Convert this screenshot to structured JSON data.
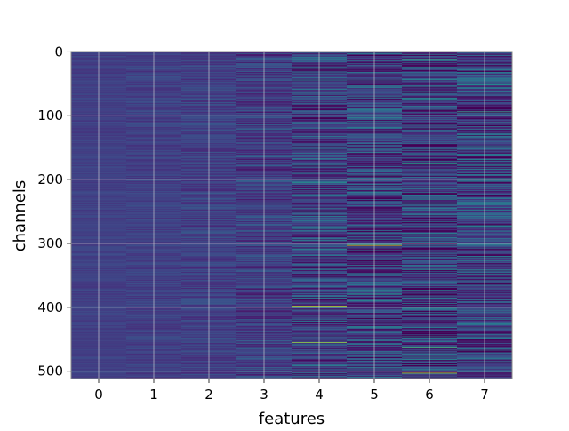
{
  "chart_data": {
    "type": "heatmap",
    "title": "",
    "xlabel": "features",
    "ylabel": "channels",
    "x_ticks": [
      "0",
      "1",
      "2",
      "3",
      "4",
      "5",
      "6",
      "7"
    ],
    "y_ticks": [
      "0",
      "100",
      "200",
      "300",
      "400",
      "500"
    ],
    "x_tick_values": [
      0,
      1,
      2,
      3,
      4,
      5,
      6,
      7
    ],
    "y_tick_values": [
      0,
      100,
      200,
      300,
      400,
      500
    ],
    "n_features": 8,
    "n_channels": 512,
    "xlim": [
      -0.5,
      7.5
    ],
    "ylim": [
      511.5,
      -0.5
    ],
    "y_inverted": true,
    "grid": true,
    "colormap": "viridis",
    "column_value_spread": [
      0.04,
      0.06,
      0.09,
      0.13,
      0.22,
      0.24,
      0.26,
      0.24
    ],
    "notable_bands": [
      {
        "feature": 4,
        "channel": 455,
        "value": 0.85
      },
      {
        "feature": 4,
        "channel": 398,
        "value": 0.9
      },
      {
        "feature": 5,
        "channel": 181,
        "value": 0.0
      },
      {
        "feature": 5,
        "channel": 303,
        "value": 0.95
      },
      {
        "feature": 6,
        "channel": 222,
        "value": 0.05
      },
      {
        "feature": 6,
        "channel": 503,
        "value": 0.9
      },
      {
        "feature": 7,
        "channel": 262,
        "value": 0.95
      }
    ]
  },
  "colors": {
    "viridis": [
      "#440154",
      "#482878",
      "#3e4989",
      "#31688e",
      "#26828e",
      "#1f9e89",
      "#35b779",
      "#6ece58",
      "#b5de2b",
      "#fde725"
    ],
    "base_value": 0.19,
    "grid": "#d8d8d8",
    "spine": "#8a8a8a"
  }
}
